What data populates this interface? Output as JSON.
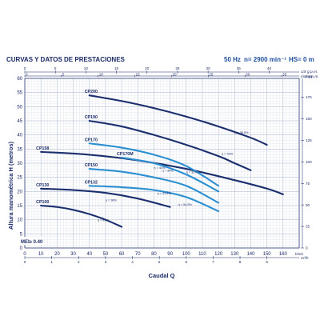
{
  "header": {
    "title": "CURVAS Y DATOS DE PRESTACIONES",
    "freq": "50 Hz",
    "speed": "n= 2900 min⁻¹",
    "hs": "HS= 0 m"
  },
  "mei_label": "MEI≥ 0.40",
  "chart_data": {
    "type": "line",
    "xlabel": "Caudal Q",
    "ylabel": "Altura manométrica H (metros)",
    "x_unit": "l/min",
    "xlim": [
      0,
      170
    ],
    "ylim": [
      0,
      60
    ],
    "x_ticks": [
      0,
      10,
      20,
      30,
      40,
      50,
      60,
      70,
      80,
      90,
      100,
      110,
      120,
      130,
      140,
      150,
      160
    ],
    "y_ticks": [
      0,
      5,
      10,
      15,
      20,
      25,
      30,
      35,
      40,
      45,
      50,
      55,
      60
    ],
    "secondary_axes": {
      "top_us": {
        "label": "US g.p.m.",
        "ticks": [
          0,
          5,
          10,
          15,
          20,
          25,
          30,
          35,
          40,
          45
        ],
        "factor": 3.785
      },
      "top_imp": {
        "label": "Imp g.p.m.",
        "ticks": [
          0,
          5,
          10,
          15,
          20,
          25,
          30,
          35
        ],
        "factor": 4.546
      },
      "bottom_m3h": {
        "label": "m³/h",
        "ticks": [
          0,
          1,
          2,
          3,
          4,
          5,
          6,
          7,
          8,
          9
        ],
        "factor": 16.667
      },
      "right_feet": {
        "label": "feet",
        "ticks": [
          0,
          25,
          50,
          75,
          100,
          125,
          150,
          175
        ],
        "factor": 0.3048
      }
    },
    "series": [
      {
        "name": "CP200",
        "x": [
          40,
          60,
          80,
          100,
          120,
          140,
          150
        ],
        "y": [
          54,
          52,
          49.5,
          46.5,
          43,
          39,
          36.5
        ],
        "color": "#1b2f6e",
        "efficiency": "η = 38.5%",
        "eff_x": 130,
        "eff_y": 40.5
      },
      {
        "name": "CP190",
        "x": [
          40,
          60,
          80,
          100,
          120,
          130,
          140
        ],
        "y": [
          45,
          43,
          40,
          36.5,
          32.5,
          30,
          27.5
        ],
        "color": "#1b2f6e",
        "efficiency": "η = 44%",
        "eff_x": 122,
        "eff_y": 33
      },
      {
        "name": "CP158",
        "x": [
          10,
          40,
          70,
          100,
          130,
          150,
          160
        ],
        "y": [
          34,
          33,
          31,
          28,
          24,
          21,
          19
        ],
        "color": "#1b2f6e",
        "efficiency": "η = 33%",
        "eff_x": 100,
        "eff_y": 26.5
      },
      {
        "name": "CP170",
        "x": [
          40,
          60,
          80,
          100,
          120
        ],
        "y": [
          37,
          35.5,
          33,
          29,
          22
        ],
        "color": "#2b8fd0",
        "efficiency": "η = 34%",
        "eff_x": 85,
        "eff_y": 27
      },
      {
        "name": "CP170M",
        "x": [
          60,
          80,
          100,
          120
        ],
        "y": [
          32,
          30,
          26,
          20
        ],
        "color": "#2b8fd0",
        "efficiency": "η = 44%",
        "eff_x": 80,
        "eff_y": 28
      },
      {
        "name": "CP150",
        "x": [
          40,
          60,
          80,
          100,
          120
        ],
        "y": [
          28,
          27,
          25,
          22,
          16
        ],
        "color": "#2b8fd0",
        "efficiency": "η = 43.5%",
        "eff_x": 82,
        "eff_y": 19
      },
      {
        "name": "CP132",
        "x": [
          40,
          60,
          80,
          100,
          120
        ],
        "y": [
          22,
          21.5,
          20.5,
          18,
          13
        ],
        "color": "#2b8fd0",
        "efficiency": "η = 54.5%",
        "eff_x": 95,
        "eff_y": 15
      },
      {
        "name": "CP130",
        "x": [
          10,
          30,
          50,
          70,
          90
        ],
        "y": [
          21,
          20.5,
          19.5,
          17.5,
          14.5
        ],
        "color": "#1b2f6e",
        "efficiency": "η = 38%",
        "eff_x": 50,
        "eff_y": 16.5
      },
      {
        "name": "CP100",
        "x": [
          10,
          20,
          30,
          40,
          50,
          60
        ],
        "y": [
          15,
          14.5,
          13.5,
          12,
          10,
          7.5
        ],
        "color": "#1b2f6e",
        "efficiency": "η = 41%",
        "eff_x": 45,
        "eff_y": 9.5
      }
    ]
  }
}
